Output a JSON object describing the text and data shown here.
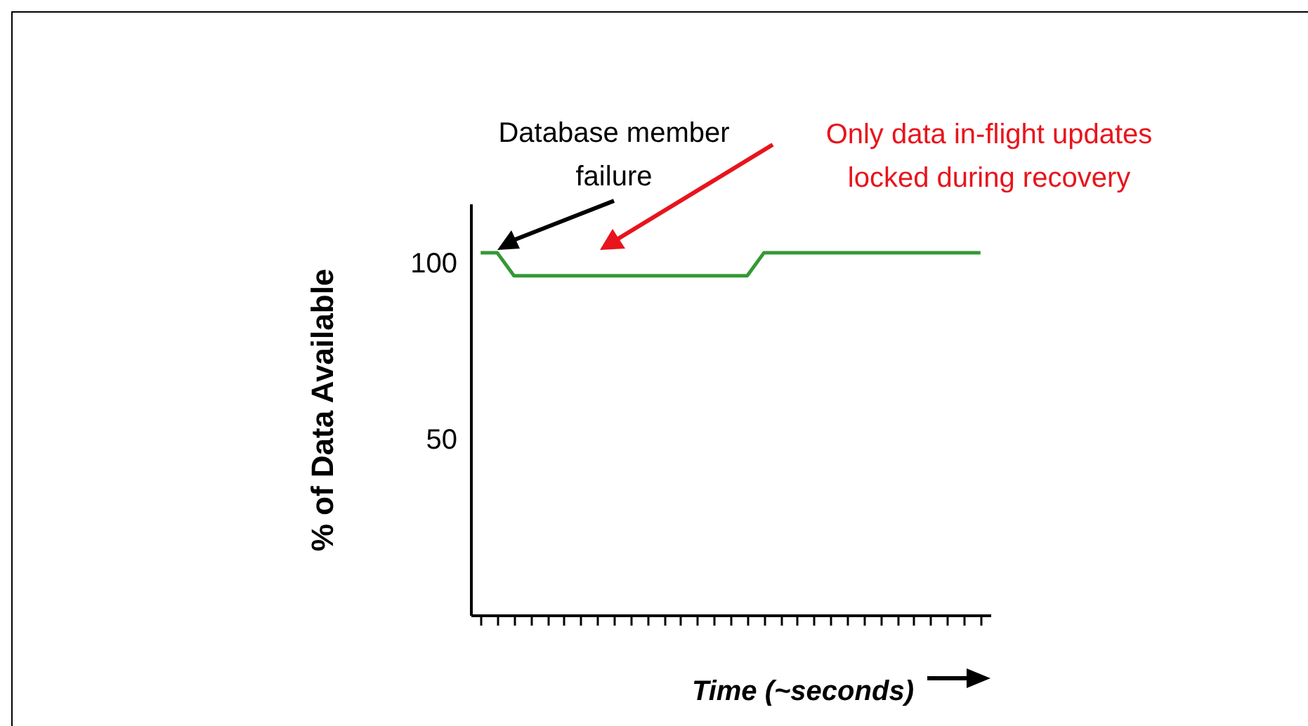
{
  "chart_data": {
    "type": "line",
    "xlabel": "Time (~seconds)",
    "ylabel": "% of Data Available",
    "categories": [
      null,
      null,
      null,
      null,
      null,
      null,
      null,
      null,
      null,
      null,
      null,
      null,
      null,
      null,
      null,
      null,
      null,
      null,
      null,
      null,
      null,
      null,
      null,
      null,
      null,
      null,
      null,
      null,
      null,
      null,
      null
    ],
    "series": [
      {
        "color": "#339933",
        "values": [
          103,
          103,
          96.5,
          96.5,
          96.5,
          96.5,
          96.5,
          96.5,
          96.5,
          96.5,
          96.5,
          96.5,
          96.5,
          96.5,
          96.5,
          96.5,
          96.5,
          103,
          103,
          103,
          103,
          103,
          103,
          103,
          103,
          103,
          103,
          103,
          103,
          103,
          103
        ]
      }
    ],
    "ylim": [
      0,
      117
    ],
    "yticks": [
      50,
      100
    ],
    "grid": false,
    "annotations": [
      "Database member\nfailure",
      "Only data in-flight updates\nlocked during recovery"
    ]
  }
}
